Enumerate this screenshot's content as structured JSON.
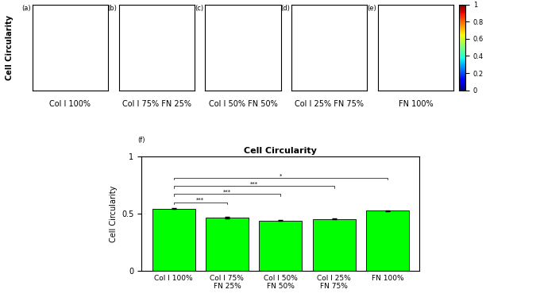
{
  "row_label": "Cell Circularity",
  "panels": [
    {
      "label": "(a)",
      "caption": "Col Ⅰ 100%"
    },
    {
      "label": "(b)",
      "caption": "Col Ⅰ 75% FN 25%"
    },
    {
      "label": "(c)",
      "caption": "Col Ⅰ 50% FN 50%"
    },
    {
      "label": "(d)",
      "caption": "Col Ⅰ 25% FN 75%"
    },
    {
      "label": "(e)",
      "caption": "FN 100%"
    }
  ],
  "colorbar": {
    "range": [
      0,
      1
    ],
    "ticks": [
      0,
      0.2,
      0.4,
      0.6,
      0.8,
      1
    ]
  },
  "chart_data": {
    "type": "bar",
    "panel_label": "(f)",
    "title": "Cell Circularity",
    "y_label": "Cell Circularity",
    "categories": [
      "Col I 100%",
      "Col I 75%\nFN 25%",
      "Col I 50%\nFN 50%",
      "Col I 25%\nFN 75%",
      "FN 100%"
    ],
    "values": [
      0.545,
      0.465,
      0.44,
      0.455,
      0.525
    ],
    "errors": [
      0.006,
      0.005,
      0.005,
      0.005,
      0.006
    ],
    "color": "#00ff00",
    "ylim": [
      0,
      1
    ],
    "yticks": [
      0,
      0.5,
      1
    ],
    "significance": [
      {
        "from": 0,
        "to": 1,
        "label": "***"
      },
      {
        "from": 0,
        "to": 2,
        "label": "***"
      },
      {
        "from": 0,
        "to": 3,
        "label": "***"
      },
      {
        "from": 0,
        "to": 4,
        "label": "*"
      }
    ]
  }
}
